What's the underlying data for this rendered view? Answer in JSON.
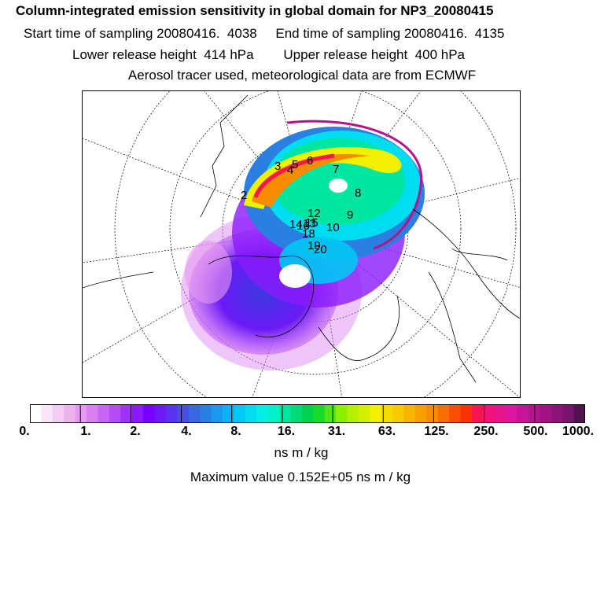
{
  "header": {
    "title": "Column-integrated emission sensitivity in global domain for NP3_20080415",
    "sampling_line": "Start time of sampling 20080416.  4038     End time of sampling 20080416.  4135",
    "height_line": "Lower release height  414 hPa        Upper release height  400 hPa",
    "tracer_line": "Aerosol tracer used, meteorological data are from ECMWF"
  },
  "colorbar": {
    "ticks": [
      "0.",
      "1.",
      "2.",
      "4.",
      "8.",
      "16.",
      "31.",
      "63.",
      "125.",
      "250.",
      "500.",
      "1000."
    ],
    "colors": [
      "#ffffff",
      "#f8e6f8",
      "#f2ccf2",
      "#ecb3ec",
      "#e699f0",
      "#d97ff2",
      "#c866f5",
      "#b64cf7",
      "#a033f9",
      "#8a1afb",
      "#7700ff",
      "#6a1af5",
      "#5a33f0",
      "#4a4cea",
      "#3a66e5",
      "#2a7fe0",
      "#1a99f0",
      "#0ab3f5",
      "#00c8f5",
      "#00dcf0",
      "#00f0e6",
      "#00f0c8",
      "#00e6a0",
      "#00dc78",
      "#00d250",
      "#14dc28",
      "#50e614",
      "#8cf000",
      "#b4f000",
      "#d2f000",
      "#f0f000",
      "#f5dc00",
      "#f8c800",
      "#f8b400",
      "#f8a000",
      "#f88c00",
      "#f86e00",
      "#f85000",
      "#f83200",
      "#f81450",
      "#f0147a",
      "#e6148c",
      "#dc14a0",
      "#c81496",
      "#b4148c",
      "#a01482",
      "#8c1478",
      "#78146e",
      "#501450"
    ],
    "units_label": "ns m / kg",
    "max_label": "Maximum value  0.152E+05 ns m / kg"
  },
  "map": {
    "labels": [
      "2",
      "3",
      "4",
      "5",
      "6",
      "7",
      "8",
      "9",
      "10",
      "12",
      "13",
      "14",
      "15",
      "16",
      "18",
      "19",
      "20"
    ]
  }
}
